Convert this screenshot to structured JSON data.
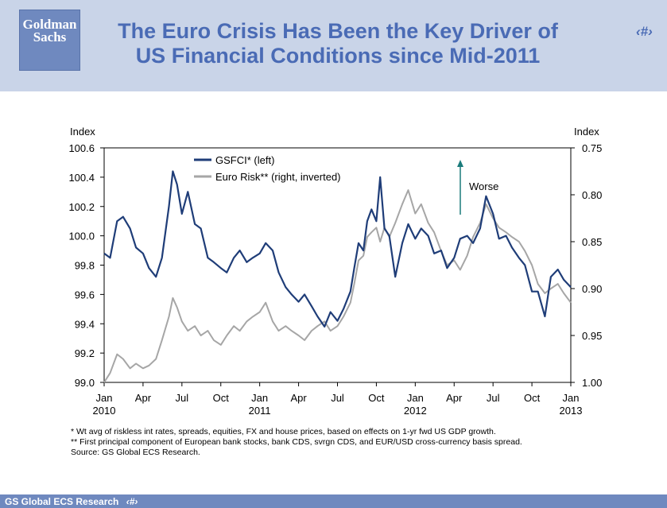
{
  "header": {
    "logo_line1": "Goldman",
    "logo_line2": "Sachs",
    "title_line1": "The Euro Crisis Has Been the Key Driver of",
    "title_line2": "US Financial Conditions since Mid-2011",
    "page_number": "‹#›"
  },
  "footer": {
    "text": "GS Global ECS Research",
    "page_number": "‹#›"
  },
  "notes": {
    "note1": "* Wt avg of riskless int rates, spreads, equities, FX and house prices, based on effects on 1-yr fwd US GDP growth.",
    "note2": "** First principal component of European bank stocks, bank CDS, svrgn CDS, and EUR/USD cross-currency basis spread.",
    "source": "Source: GS Global ECS Research."
  },
  "chart_data": {
    "type": "line",
    "left_axis": {
      "label": "Index",
      "range": [
        99.0,
        100.6
      ],
      "ticks": [
        "100.6",
        "100.4",
        "100.2",
        "100.0",
        "99.8",
        "99.6",
        "99.4",
        "99.2",
        "99.0"
      ]
    },
    "right_axis": {
      "label": "Index",
      "range": [
        0.75,
        1.0
      ],
      "inverted": true,
      "ticks": [
        "0.75",
        "0.80",
        "0.85",
        "0.90",
        "0.95",
        "1.00"
      ]
    },
    "x_axis": {
      "range": [
        "2010-01",
        "2013-01"
      ],
      "ticks": [
        {
          "month": "Jan",
          "year": "2010"
        },
        {
          "month": "Apr",
          "year": ""
        },
        {
          "month": "Jul",
          "year": ""
        },
        {
          "month": "Oct",
          "year": ""
        },
        {
          "month": "Jan",
          "year": "2011"
        },
        {
          "month": "Apr",
          "year": ""
        },
        {
          "month": "Jul",
          "year": ""
        },
        {
          "month": "Oct",
          "year": ""
        },
        {
          "month": "Jan",
          "year": "2012"
        },
        {
          "month": "Apr",
          "year": ""
        },
        {
          "month": "Jul",
          "year": ""
        },
        {
          "month": "Oct",
          "year": ""
        },
        {
          "month": "Jan",
          "year": "2013"
        }
      ]
    },
    "legend": {
      "placement": "top-left"
    },
    "annotation": {
      "text": "Worse",
      "arrow": "up"
    },
    "series": [
      {
        "name": "GSFCI* (left)",
        "axis": "left",
        "color": "#1f3d78",
        "points": [
          [
            "2010-01",
            99.88
          ],
          [
            "2010-01-15",
            99.85
          ],
          [
            "2010-02",
            100.1
          ],
          [
            "2010-02-15",
            100.13
          ],
          [
            "2010-03",
            100.05
          ],
          [
            "2010-03-15",
            99.92
          ],
          [
            "2010-04",
            99.88
          ],
          [
            "2010-04-15",
            99.78
          ],
          [
            "2010-05",
            99.72
          ],
          [
            "2010-05-15",
            99.85
          ],
          [
            "2010-06",
            100.2
          ],
          [
            "2010-06-10",
            100.44
          ],
          [
            "2010-06-20",
            100.35
          ],
          [
            "2010-07",
            100.15
          ],
          [
            "2010-07-15",
            100.3
          ],
          [
            "2010-08",
            100.08
          ],
          [
            "2010-08-15",
            100.05
          ],
          [
            "2010-09",
            99.85
          ],
          [
            "2010-09-15",
            99.82
          ],
          [
            "2010-10",
            99.78
          ],
          [
            "2010-10-15",
            99.75
          ],
          [
            "2010-11",
            99.85
          ],
          [
            "2010-11-15",
            99.9
          ],
          [
            "2010-12",
            99.82
          ],
          [
            "2010-12-15",
            99.85
          ],
          [
            "2011-01",
            99.88
          ],
          [
            "2011-01-15",
            99.95
          ],
          [
            "2011-02",
            99.9
          ],
          [
            "2011-02-15",
            99.75
          ],
          [
            "2011-03",
            99.65
          ],
          [
            "2011-03-15",
            99.6
          ],
          [
            "2011-04",
            99.55
          ],
          [
            "2011-04-15",
            99.6
          ],
          [
            "2011-05",
            99.52
          ],
          [
            "2011-05-15",
            99.45
          ],
          [
            "2011-06",
            99.38
          ],
          [
            "2011-06-15",
            99.48
          ],
          [
            "2011-07",
            99.42
          ],
          [
            "2011-07-15",
            99.5
          ],
          [
            "2011-08",
            99.62
          ],
          [
            "2011-08-10",
            99.78
          ],
          [
            "2011-08-20",
            99.95
          ],
          [
            "2011-09",
            99.9
          ],
          [
            "2011-09-10",
            100.1
          ],
          [
            "2011-09-20",
            100.18
          ],
          [
            "2011-10",
            100.1
          ],
          [
            "2011-10-10",
            100.4
          ],
          [
            "2011-10-20",
            100.05
          ],
          [
            "2011-11",
            100.0
          ],
          [
            "2011-11-15",
            99.72
          ],
          [
            "2011-12",
            99.95
          ],
          [
            "2011-12-15",
            100.08
          ],
          [
            "2012-01",
            99.98
          ],
          [
            "2012-01-15",
            100.05
          ],
          [
            "2012-02",
            100.0
          ],
          [
            "2012-02-15",
            99.88
          ],
          [
            "2012-03",
            99.9
          ],
          [
            "2012-03-15",
            99.78
          ],
          [
            "2012-04",
            99.85
          ],
          [
            "2012-04-15",
            99.98
          ],
          [
            "2012-05",
            100.0
          ],
          [
            "2012-05-15",
            99.95
          ],
          [
            "2012-06",
            100.05
          ],
          [
            "2012-06-15",
            100.27
          ],
          [
            "2012-07",
            100.15
          ],
          [
            "2012-07-15",
            99.98
          ],
          [
            "2012-08",
            100.0
          ],
          [
            "2012-08-15",
            99.92
          ],
          [
            "2012-09",
            99.85
          ],
          [
            "2012-09-15",
            99.8
          ],
          [
            "2012-10",
            99.62
          ],
          [
            "2012-10-15",
            99.62
          ],
          [
            "2012-11",
            99.45
          ],
          [
            "2012-11-15",
            99.72
          ],
          [
            "2012-12",
            99.77
          ],
          [
            "2012-12-15",
            99.7
          ],
          [
            "2013-01",
            99.65
          ]
        ]
      },
      {
        "name": "Euro Risk** (right, inverted)",
        "axis": "right",
        "color": "#a6a6a6",
        "points": [
          [
            "2010-01",
            1.0
          ],
          [
            "2010-01-15",
            0.99
          ],
          [
            "2010-02",
            0.97
          ],
          [
            "2010-02-15",
            0.975
          ],
          [
            "2010-03",
            0.985
          ],
          [
            "2010-03-15",
            0.98
          ],
          [
            "2010-04",
            0.985
          ],
          [
            "2010-04-15",
            0.982
          ],
          [
            "2010-05",
            0.975
          ],
          [
            "2010-05-15",
            0.955
          ],
          [
            "2010-06",
            0.93
          ],
          [
            "2010-06-10",
            0.91
          ],
          [
            "2010-06-20",
            0.92
          ],
          [
            "2010-07",
            0.935
          ],
          [
            "2010-07-15",
            0.945
          ],
          [
            "2010-08",
            0.94
          ],
          [
            "2010-08-15",
            0.95
          ],
          [
            "2010-09",
            0.945
          ],
          [
            "2010-09-15",
            0.955
          ],
          [
            "2010-10",
            0.96
          ],
          [
            "2010-10-15",
            0.95
          ],
          [
            "2010-11",
            0.94
          ],
          [
            "2010-11-15",
            0.945
          ],
          [
            "2010-12",
            0.935
          ],
          [
            "2010-12-15",
            0.93
          ],
          [
            "2011-01",
            0.925
          ],
          [
            "2011-01-15",
            0.915
          ],
          [
            "2011-02",
            0.935
          ],
          [
            "2011-02-15",
            0.945
          ],
          [
            "2011-03",
            0.94
          ],
          [
            "2011-03-15",
            0.945
          ],
          [
            "2011-04",
            0.95
          ],
          [
            "2011-04-15",
            0.955
          ],
          [
            "2011-05",
            0.945
          ],
          [
            "2011-05-15",
            0.94
          ],
          [
            "2011-06",
            0.935
          ],
          [
            "2011-06-15",
            0.945
          ],
          [
            "2011-07",
            0.94
          ],
          [
            "2011-07-15",
            0.93
          ],
          [
            "2011-08",
            0.915
          ],
          [
            "2011-08-10",
            0.895
          ],
          [
            "2011-08-20",
            0.87
          ],
          [
            "2011-09",
            0.865
          ],
          [
            "2011-09-10",
            0.845
          ],
          [
            "2011-09-20",
            0.84
          ],
          [
            "2011-10",
            0.835
          ],
          [
            "2011-10-10",
            0.85
          ],
          [
            "2011-10-20",
            0.835
          ],
          [
            "2011-11",
            0.845
          ],
          [
            "2011-11-15",
            0.83
          ],
          [
            "2011-12",
            0.81
          ],
          [
            "2011-12-15",
            0.795
          ],
          [
            "2012-01",
            0.82
          ],
          [
            "2012-01-15",
            0.81
          ],
          [
            "2012-02",
            0.83
          ],
          [
            "2012-02-15",
            0.84
          ],
          [
            "2012-03",
            0.86
          ],
          [
            "2012-03-15",
            0.875
          ],
          [
            "2012-04",
            0.87
          ],
          [
            "2012-04-15",
            0.88
          ],
          [
            "2012-05",
            0.865
          ],
          [
            "2012-05-15",
            0.845
          ],
          [
            "2012-06",
            0.83
          ],
          [
            "2012-06-15",
            0.81
          ],
          [
            "2012-07",
            0.825
          ],
          [
            "2012-07-15",
            0.835
          ],
          [
            "2012-08",
            0.84
          ],
          [
            "2012-08-15",
            0.845
          ],
          [
            "2012-09",
            0.85
          ],
          [
            "2012-09-15",
            0.86
          ],
          [
            "2012-10",
            0.875
          ],
          [
            "2012-10-15",
            0.895
          ],
          [
            "2012-11",
            0.905
          ],
          [
            "2012-11-15",
            0.9
          ],
          [
            "2012-12",
            0.895
          ],
          [
            "2012-12-15",
            0.905
          ],
          [
            "2013-01",
            0.915
          ]
        ]
      }
    ]
  }
}
